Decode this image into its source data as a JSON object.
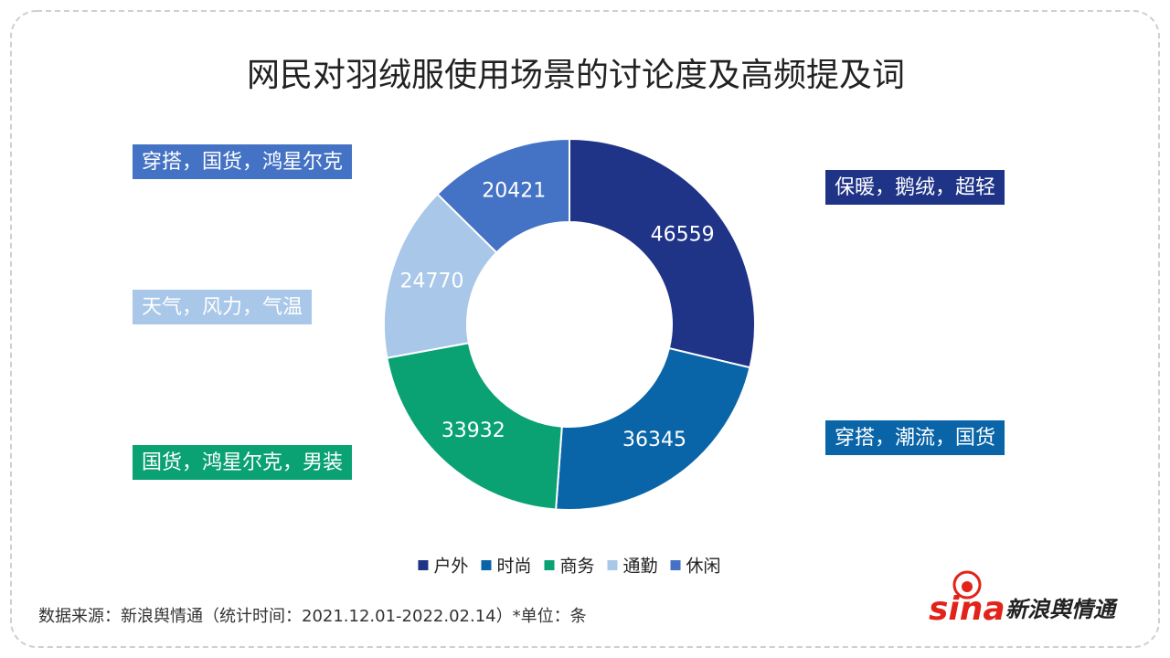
{
  "chart_data": {
    "type": "pie",
    "donut": true,
    "title": "网民对羽绒服使用场景的讨论度及高频提及词",
    "categories": [
      "户外",
      "时尚",
      "商务",
      "通勤",
      "休闲"
    ],
    "values": [
      46559,
      36345,
      33932,
      24770,
      20421
    ],
    "colors": [
      "#1f3387",
      "#0a64a8",
      "#0aa272",
      "#a9c7e8",
      "#4472c4"
    ],
    "annotations": [
      "保暖，鹅绒，超轻",
      "穿搭，潮流，国货",
      "国货，鸿星尔克，男装",
      "天气，风力，气温",
      "穿搭，国货，鸿星尔克"
    ],
    "legend": "bottom"
  },
  "source": "数据来源：新浪舆情通（统计时间：2021.12.01-2022.02.14）*单位：条",
  "logo": {
    "brand": "sina",
    "name": "新浪舆情通"
  }
}
